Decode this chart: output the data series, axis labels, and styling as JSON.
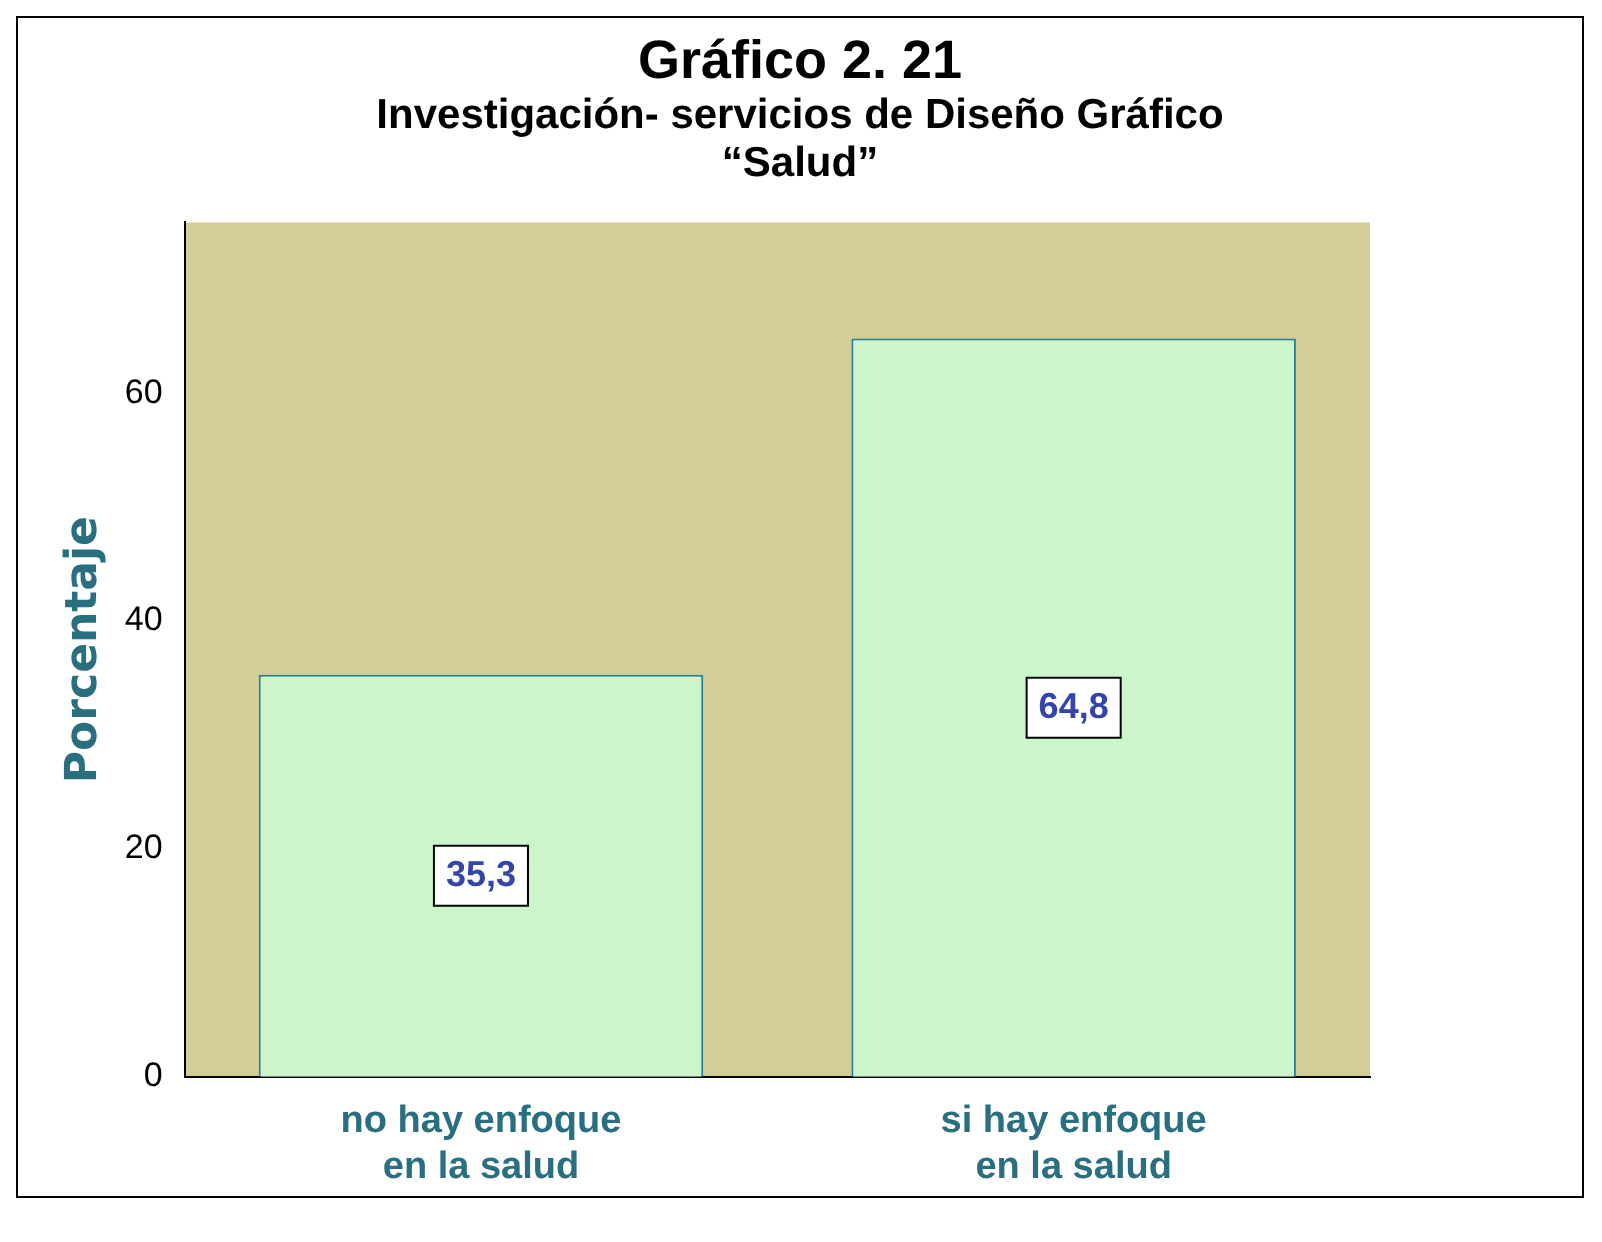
{
  "chart_data": {
    "type": "bar",
    "title": "Gráfico 2. 21",
    "subtitle": "Investigación- servicios de Diseño Gráfico “Salud”",
    "ylabel": "Porcentaje",
    "categories": [
      "no hay enfoque en la salud",
      "si hay enfoque en la salud"
    ],
    "values": [
      35.3,
      64.8
    ],
    "value_labels": [
      "35,3",
      "64,8"
    ],
    "color": "#ccf5cc",
    "ylim": [
      0,
      75
    ],
    "yticks": [
      0,
      20,
      40,
      60
    ],
    "grid": false,
    "legend": false
  }
}
